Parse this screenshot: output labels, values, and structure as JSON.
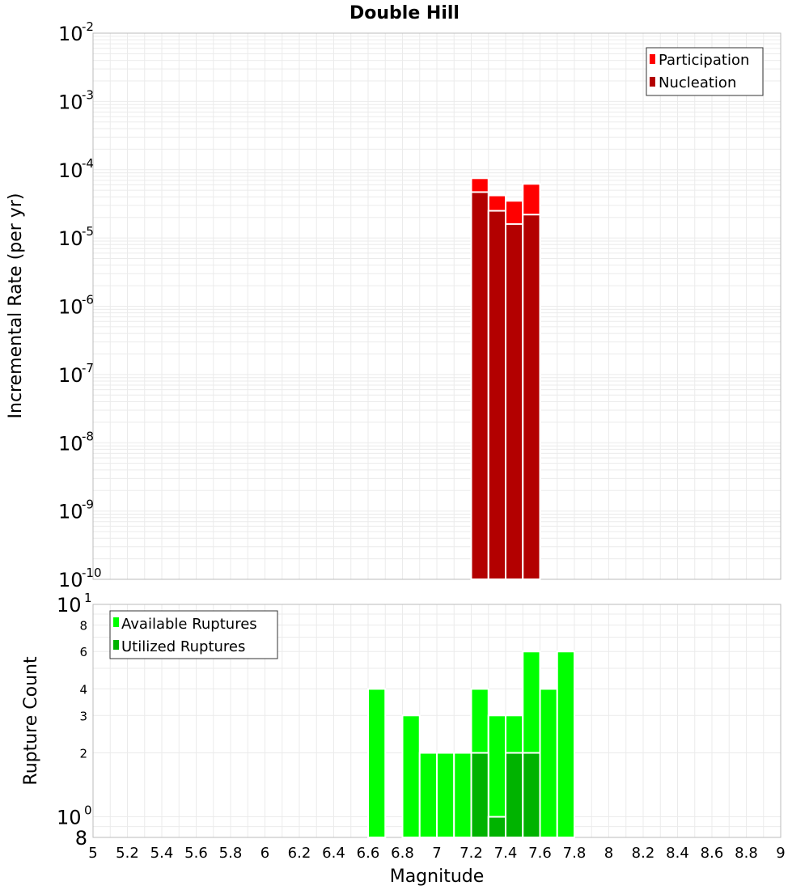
{
  "chart_data": [
    {
      "type": "bar",
      "title": "Double Hill",
      "xlabel": "",
      "ylabel": "Incremental Rate (per yr)",
      "xlim": [
        5,
        9
      ],
      "ylim": [
        1e-10,
        0.01
      ],
      "yscale": "log",
      "grid": true,
      "bar_width": 0.1,
      "legend_position": "top-right",
      "series": [
        {
          "name": "Participation",
          "color": "#ff0000",
          "x": [
            7.25,
            7.35,
            7.45,
            7.55
          ],
          "values": [
            7.5e-05,
            4.2e-05,
            3.5e-05,
            6.2e-05
          ]
        },
        {
          "name": "Nucleation",
          "color": "#b30000",
          "x": [
            7.25,
            7.35,
            7.45,
            7.55
          ],
          "values": [
            4.7e-05,
            2.5e-05,
            1.6e-05,
            2.2e-05
          ]
        }
      ]
    },
    {
      "type": "bar",
      "title": "",
      "xlabel": "Magnitude",
      "ylabel": "Rupture Count",
      "xlim": [
        5,
        9
      ],
      "ylim": [
        0.8,
        10
      ],
      "yscale": "log",
      "grid": true,
      "bar_width": 0.1,
      "legend_position": "top-left",
      "series": [
        {
          "name": "Available Ruptures",
          "color": "#00ff00",
          "x": [
            6.65,
            6.85,
            6.95,
            7.05,
            7.15,
            7.25,
            7.35,
            7.45,
            7.55,
            7.65,
            7.75
          ],
          "values": [
            4,
            3,
            2,
            2,
            2,
            4,
            3,
            3,
            6,
            4,
            6
          ]
        },
        {
          "name": "Utilized Ruptures",
          "color": "#00b300",
          "x": [
            7.25,
            7.35,
            7.45,
            7.55
          ],
          "values": [
            2,
            1,
            2,
            2
          ]
        }
      ]
    }
  ],
  "axis": {
    "x_ticks": [
      "5",
      "5.2",
      "5.4",
      "5.6",
      "5.8",
      "6",
      "6.2",
      "6.4",
      "6.6",
      "6.8",
      "7",
      "7.2",
      "7.4",
      "7.6",
      "7.8",
      "8",
      "8.2",
      "8.4",
      "8.6",
      "8.8",
      "9"
    ],
    "top_decades": [
      {
        "base": "10",
        "exp": "-10"
      },
      {
        "base": "10",
        "exp": "-9"
      },
      {
        "base": "10",
        "exp": "-8"
      },
      {
        "base": "10",
        "exp": "-7"
      },
      {
        "base": "10",
        "exp": "-6"
      },
      {
        "base": "10",
        "exp": "-5"
      },
      {
        "base": "10",
        "exp": "-4"
      },
      {
        "base": "10",
        "exp": "-3"
      },
      {
        "base": "10",
        "exp": "-2"
      }
    ],
    "bottom_decades": [
      {
        "base": "10",
        "exp": "0"
      },
      {
        "base": "10",
        "exp": "1"
      }
    ],
    "bottom_minor_ticks": [
      "8",
      "2",
      "3",
      "4",
      "6",
      "8"
    ]
  },
  "colors": {
    "grid": "#ebebeb",
    "frame": "#bbbbbb",
    "bar_outline": "#ffffff"
  }
}
